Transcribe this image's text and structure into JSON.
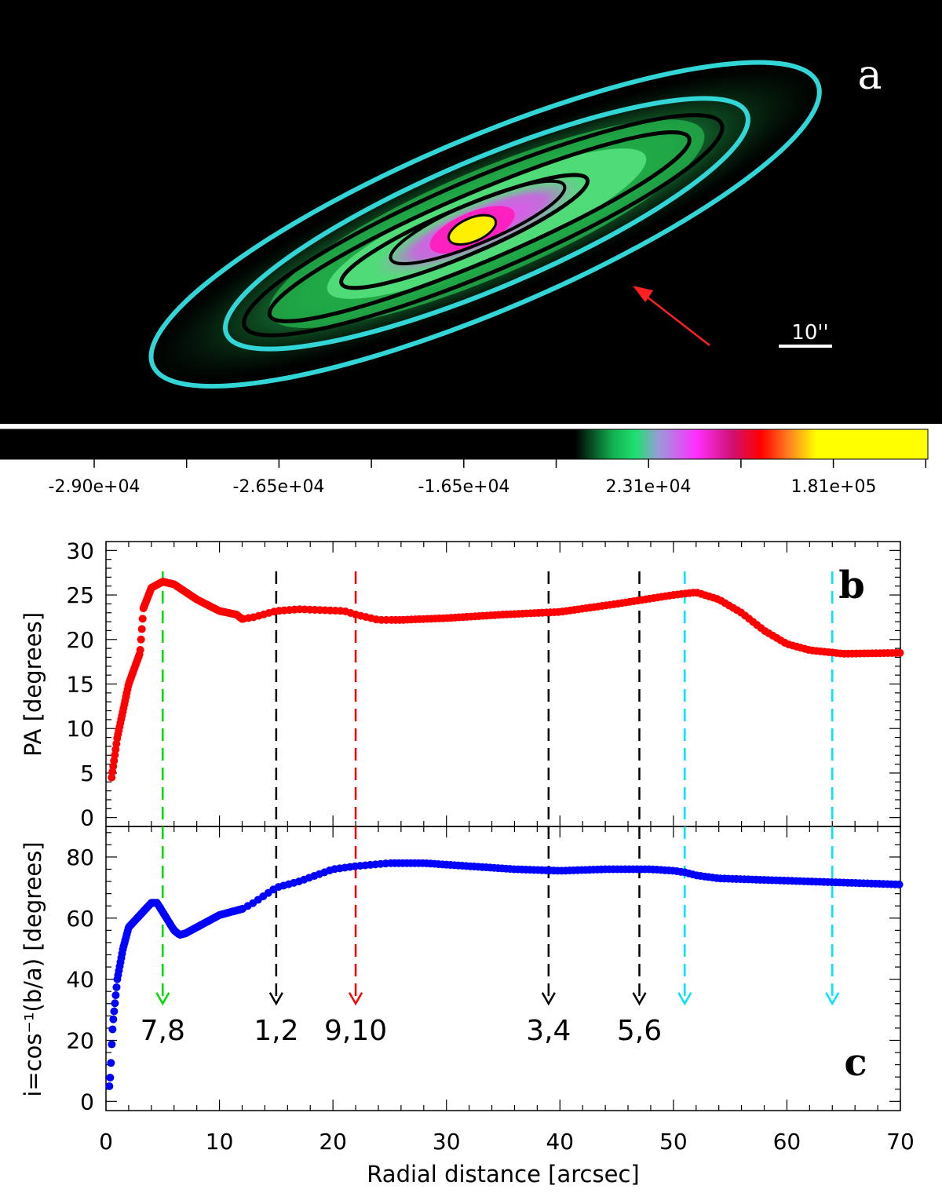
{
  "panel_a": {
    "letter": "a",
    "scale_bar_label": "10''",
    "colors": {
      "contour_outer": "#33d6d6",
      "contour_inner": "#000000",
      "arrow": "#ff2020"
    },
    "colorbar": {
      "tick_labels": [
        "-2.90e+04",
        "-2.65e+04",
        "-1.65e+04",
        "2.31e+04",
        "1.81e+05"
      ]
    }
  },
  "chart_data": [
    {
      "type": "scatter",
      "panel": "b",
      "letter": "b",
      "ylabel": "PA [degrees]",
      "xlim": [
        0,
        70
      ],
      "ylim": [
        -1,
        31
      ],
      "yticks": [
        0,
        5,
        10,
        15,
        20,
        25,
        30
      ],
      "color": "#ff0000",
      "key_points": [
        [
          0.5,
          4.5
        ],
        [
          1,
          9
        ],
        [
          2,
          15
        ],
        [
          3,
          18.5
        ],
        [
          3.3,
          23.5
        ],
        [
          4,
          25.8
        ],
        [
          5,
          26.5
        ],
        [
          6,
          26.2
        ],
        [
          8,
          24.5
        ],
        [
          10,
          23.2
        ],
        [
          11.5,
          22.8
        ],
        [
          12,
          22.3
        ],
        [
          13,
          22.5
        ],
        [
          15,
          23.2
        ],
        [
          17,
          23.4
        ],
        [
          19,
          23.3
        ],
        [
          21,
          23.2
        ],
        [
          22,
          22.8
        ],
        [
          23,
          22.5
        ],
        [
          24,
          22.2
        ],
        [
          26,
          22.2
        ],
        [
          30,
          22.4
        ],
        [
          35,
          22.8
        ],
        [
          40,
          23.1
        ],
        [
          45,
          24
        ],
        [
          48,
          24.6
        ],
        [
          50,
          25
        ],
        [
          52,
          25.3
        ],
        [
          54,
          24.5
        ],
        [
          56,
          23
        ],
        [
          58,
          21
        ],
        [
          60,
          19.5
        ],
        [
          62,
          18.8
        ],
        [
          65,
          18.4
        ],
        [
          70,
          18.5
        ]
      ]
    },
    {
      "type": "scatter",
      "panel": "c",
      "letter": "c",
      "ylabel": "i=cos⁻¹(b/a) [degrees]",
      "xlabel": "Radial distance [arcsec]",
      "xlim": [
        0,
        70
      ],
      "ylim": [
        -3,
        90
      ],
      "yticks": [
        0,
        20,
        40,
        60,
        80
      ],
      "xticks": [
        0,
        10,
        20,
        30,
        40,
        50,
        60,
        70
      ],
      "color": "#0000ff",
      "key_points": [
        [
          0.3,
          5
        ],
        [
          0.4,
          9
        ],
        [
          0.5,
          18
        ],
        [
          0.6,
          25
        ],
        [
          1,
          40
        ],
        [
          1.5,
          50
        ],
        [
          2,
          57
        ],
        [
          3,
          61
        ],
        [
          4,
          65
        ],
        [
          4.5,
          65
        ],
        [
          5,
          62
        ],
        [
          6,
          56
        ],
        [
          6.5,
          54.5
        ],
        [
          7,
          55
        ],
        [
          8,
          57
        ],
        [
          10,
          61
        ],
        [
          12,
          63
        ],
        [
          13,
          65
        ],
        [
          15,
          70
        ],
        [
          17,
          72
        ],
        [
          20,
          76
        ],
        [
          22,
          77
        ],
        [
          25,
          78
        ],
        [
          28,
          78
        ],
        [
          32,
          77
        ],
        [
          36,
          76
        ],
        [
          40,
          75.5
        ],
        [
          44,
          76
        ],
        [
          46,
          76
        ],
        [
          48,
          76
        ],
        [
          50,
          75.5
        ],
        [
          51,
          75
        ],
        [
          52,
          74
        ],
        [
          54,
          73
        ],
        [
          58,
          72.5
        ],
        [
          62,
          72
        ],
        [
          66,
          71.5
        ],
        [
          70,
          71
        ]
      ]
    }
  ],
  "markers": [
    {
      "x": 5,
      "label": "7,8",
      "color": "#00dd00"
    },
    {
      "x": 15,
      "label": "1,2",
      "color": "#000000"
    },
    {
      "x": 22,
      "label": "9,10",
      "color": "#ff0000"
    },
    {
      "x": 39,
      "label": "3,4",
      "color": "#000000"
    },
    {
      "x": 47,
      "label": "5,6",
      "color": "#000000"
    },
    {
      "x": 51,
      "label": "",
      "color": "#00e5ff"
    },
    {
      "x": 64,
      "label": "",
      "color": "#00e5ff"
    }
  ]
}
